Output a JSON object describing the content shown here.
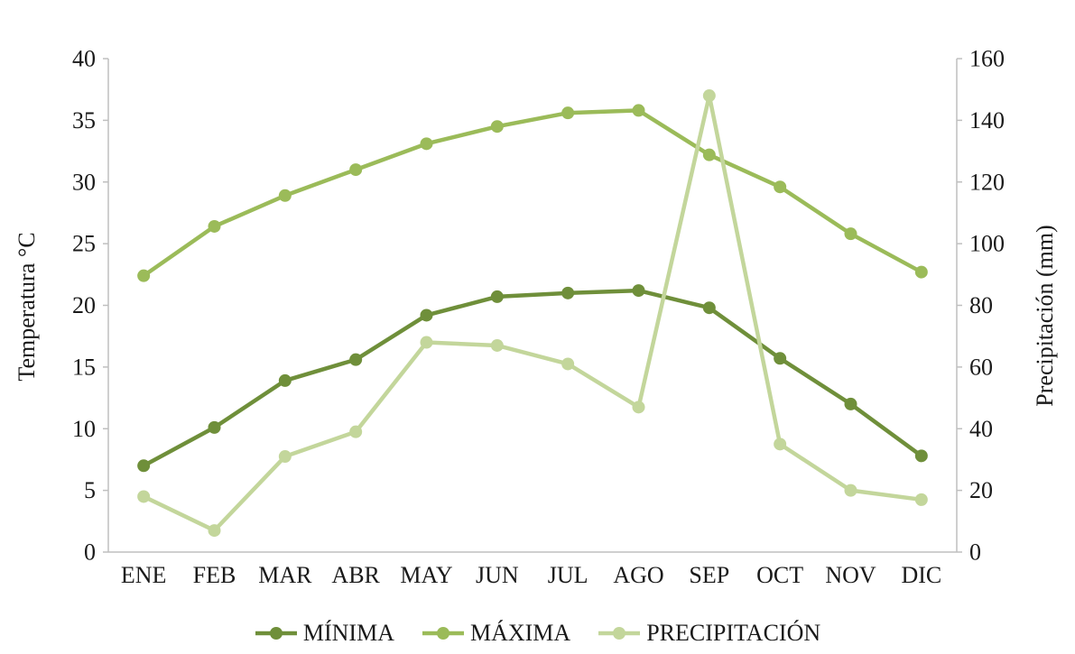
{
  "chart_data": {
    "type": "line",
    "title": "",
    "categories": [
      "ENE",
      "FEB",
      "MAR",
      "ABR",
      "MAY",
      "JUN",
      "JUL",
      "AGO",
      "SEP",
      "OCT",
      "NOV",
      "DIC"
    ],
    "series": [
      {
        "name": "MÍNIMA",
        "axis": "left",
        "color": "#6f8f3a",
        "values": [
          7,
          10.1,
          13.9,
          15.6,
          19.2,
          20.7,
          21,
          21.2,
          19.8,
          15.7,
          12,
          7.8
        ]
      },
      {
        "name": "MÁXIMA",
        "axis": "left",
        "color": "#9bbb59",
        "values": [
          22.4,
          26.4,
          28.9,
          31,
          33.1,
          34.5,
          35.6,
          35.8,
          32.2,
          29.6,
          25.8,
          22.7
        ]
      },
      {
        "name": "PRECIPITACIÓN",
        "axis": "right",
        "color": "#c3d69b",
        "values": [
          18,
          7,
          31,
          39,
          68,
          67,
          61,
          47,
          148,
          35,
          20,
          17
        ]
      }
    ],
    "left_axis": {
      "label": "Temperatura °C",
      "min": 0,
      "max": 40,
      "step": 5
    },
    "right_axis": {
      "label": "Precipitación (mm)",
      "min": 0,
      "max": 160,
      "step": 20
    },
    "grid": false,
    "legend_position": "bottom",
    "axis_color": "#bfbfbf",
    "text_color": "#1a1a1a"
  }
}
